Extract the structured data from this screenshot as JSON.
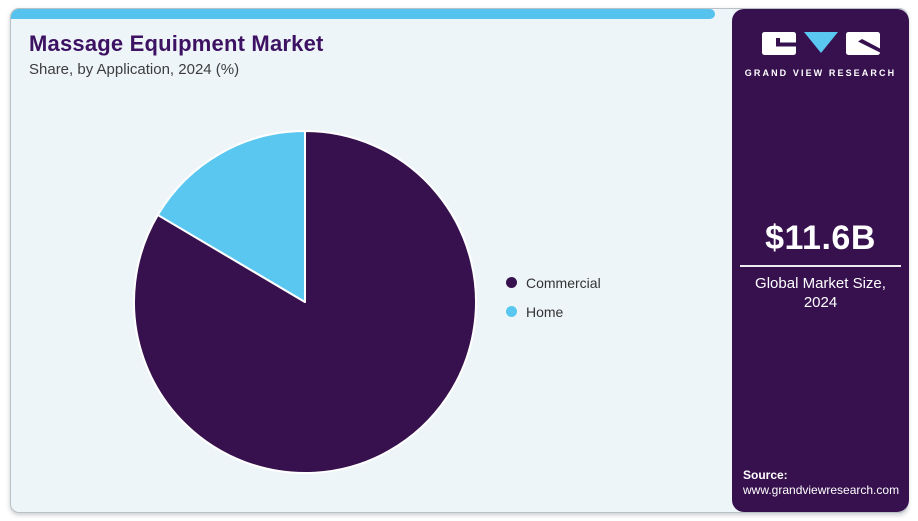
{
  "header": {
    "title": "Massage Equipment Market",
    "subtitle": "Share, by Application, 2024 (%)"
  },
  "legend": {
    "items": [
      {
        "label": "Commercial",
        "color": "#36114e"
      },
      {
        "label": "Home",
        "color": "#5ac7f0"
      }
    ]
  },
  "sidebar": {
    "logo": {
      "brand": "GRAND VIEW RESEARCH"
    },
    "market_size": {
      "value": "$11.6B",
      "caption": "Global Market Size, 2024"
    },
    "source": {
      "label": "Source:",
      "url": "www.grandviewresearch.com"
    }
  },
  "chart_data": {
    "type": "pie",
    "title": "Massage Equipment Market Share, by Application, 2024 (%)",
    "categories": [
      "Commercial",
      "Home"
    ],
    "values": [
      83.5,
      16.5
    ],
    "colors": [
      "#36114e",
      "#5ac7f0"
    ],
    "start_angle_deg": 0,
    "direction": "clockwise",
    "legend_position": "right",
    "slice_border_color": "#ffffff"
  },
  "colors": {
    "accent_strip": "#56c2ee",
    "sidebar_bg": "#36114e",
    "title_text": "#3e1262",
    "card_bg": "#eef5f9"
  }
}
